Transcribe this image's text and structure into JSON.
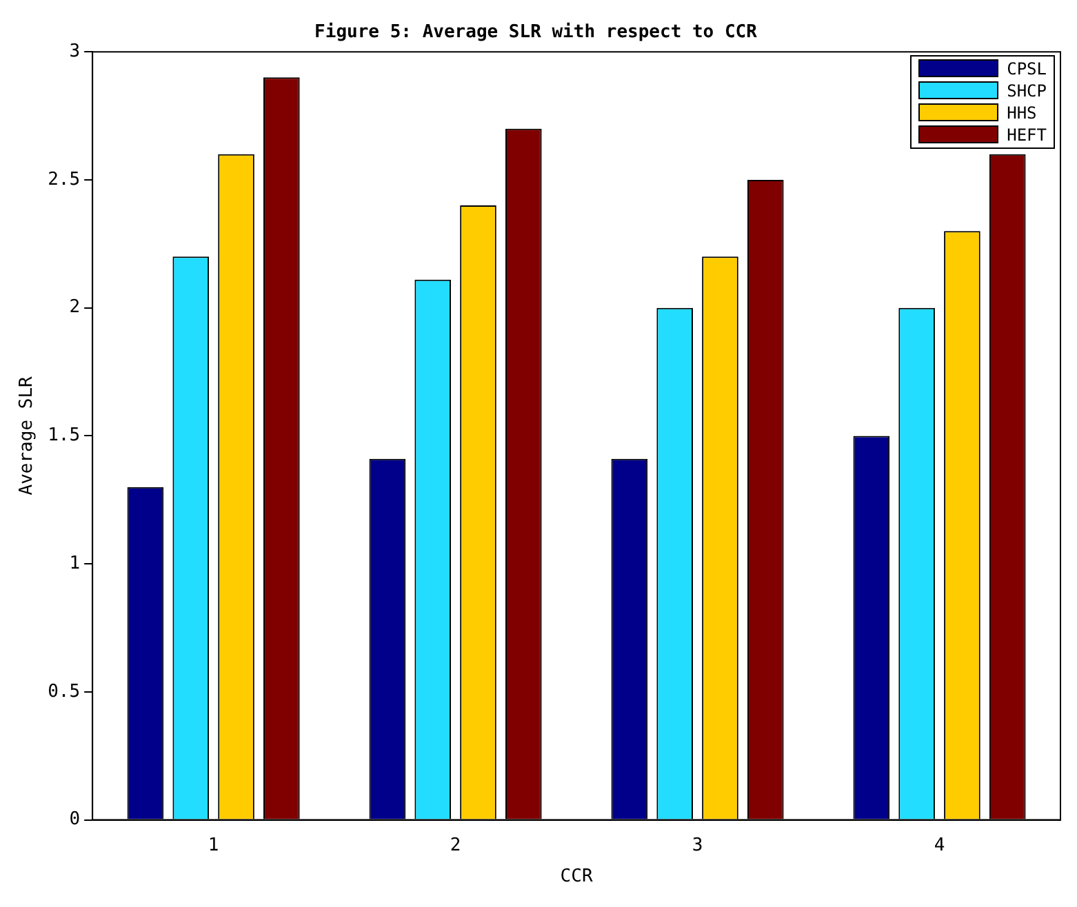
{
  "chart_data": {
    "type": "bar",
    "title": "Figure 5: Average SLR with respect to CCR",
    "xlabel": "CCR",
    "ylabel": "Average SLR",
    "categories": [
      "1",
      "2",
      "3",
      "4"
    ],
    "series": [
      {
        "name": "CPSL",
        "color": "#00008b",
        "values": [
          1.3,
          1.41,
          1.41,
          1.5
        ]
      },
      {
        "name": "SHCP",
        "color": "#22ddff",
        "values": [
          2.2,
          2.11,
          2.0,
          2.0
        ]
      },
      {
        "name": "HHS",
        "color": "#ffcc00",
        "values": [
          2.6,
          2.4,
          2.2,
          2.3
        ]
      },
      {
        "name": "HEFT",
        "color": "#800000",
        "values": [
          2.9,
          2.7,
          2.5,
          2.6
        ]
      }
    ],
    "ylim": [
      0,
      3
    ],
    "yticks": [
      0,
      0.5,
      1,
      1.5,
      2,
      2.5,
      3
    ],
    "grid": false,
    "legend": "top right"
  }
}
